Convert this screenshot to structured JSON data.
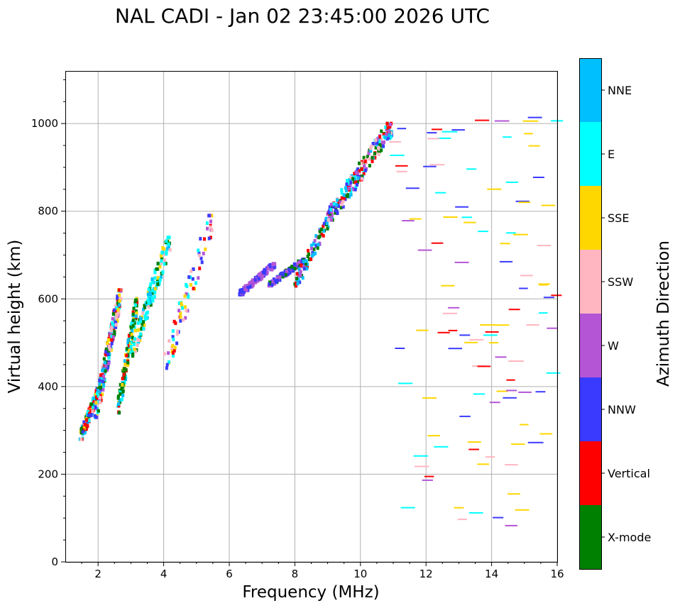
{
  "chart_data": {
    "type": "scatter",
    "title": "NAL CADI - Jan 02 23:45:00 2026 UTC",
    "xlabel": "Frequency (MHz)",
    "ylabel": "Virtual height (km)",
    "xlim": [
      1,
      16
    ],
    "ylim": [
      0,
      1120
    ],
    "x_ticks": [
      2,
      4,
      6,
      8,
      10,
      12,
      14,
      16
    ],
    "y_ticks": [
      0,
      200,
      400,
      600,
      800,
      1000
    ],
    "grid": true,
    "colorbar": {
      "label": "Azimuth Direction",
      "categories": [
        {
          "name": "X-mode",
          "color": "#008000"
        },
        {
          "name": "Vertical",
          "color": "#ff0000"
        },
        {
          "name": "NNW",
          "color": "#3a3aff"
        },
        {
          "name": "W",
          "color": "#b455d6"
        },
        {
          "name": "SSW",
          "color": "#ffb6c1"
        },
        {
          "name": "SSE",
          "color": "#ffd700"
        },
        {
          "name": "E",
          "color": "#00ffff"
        },
        {
          "name": "NNE",
          "color": "#00bfff"
        }
      ]
    },
    "clusters": [
      {
        "f": [
          1.45,
          2.2
        ],
        "h": [
          280,
          430
        ],
        "n": 170,
        "mix": [
          "Vertical",
          "Vertical",
          "E",
          "SSE",
          "NNE",
          "SSW",
          "NNW",
          "X-mode"
        ]
      },
      {
        "f": [
          1.9,
          2.7
        ],
        "h": [
          330,
          620
        ],
        "n": 220,
        "mix": [
          "SSW",
          "SSE",
          "E",
          "Vertical",
          "X-mode",
          "NNE",
          "W",
          "NNW"
        ]
      },
      {
        "f": [
          2.6,
          3.2
        ],
        "h": [
          340,
          600
        ],
        "n": 130,
        "mix": [
          "X-mode",
          "X-mode",
          "E",
          "SSE",
          "Vertical",
          "NNE"
        ]
      },
      {
        "f": [
          3.0,
          4.2
        ],
        "h": [
          470,
          740
        ],
        "n": 150,
        "mix": [
          "E",
          "E",
          "SSE",
          "NNE",
          "SSW",
          "X-mode"
        ]
      },
      {
        "f": [
          4.0,
          5.5
        ],
        "h": [
          440,
          790
        ],
        "n": 80,
        "mix": [
          "SSE",
          "W",
          "E",
          "NNW",
          "Vertical",
          "SSW"
        ]
      },
      {
        "f": [
          6.3,
          7.4
        ],
        "h": [
          610,
          680
        ],
        "n": 140,
        "mix": [
          "NNW",
          "NNW",
          "W",
          "W"
        ]
      },
      {
        "f": [
          7.2,
          8.3
        ],
        "h": [
          630,
          690
        ],
        "n": 100,
        "mix": [
          "NNW",
          "NNW",
          "W",
          "X-mode"
        ]
      },
      {
        "f": [
          8.0,
          9.2
        ],
        "h": [
          630,
          810
        ],
        "n": 90,
        "mix": [
          "X-mode",
          "NNE",
          "NNW",
          "W",
          "Vertical"
        ]
      },
      {
        "f": [
          9.0,
          11.0
        ],
        "h": [
          780,
          1000
        ],
        "n": 210,
        "mix": [
          "NNE",
          "Vertical",
          "X-mode",
          "W",
          "NNW",
          "SSW",
          "E"
        ]
      },
      {
        "f": [
          11.0,
          16.0
        ],
        "h": [
          80,
          1020
        ],
        "n": 110,
        "mix": [
          "Vertical",
          "SSE",
          "W",
          "NNW",
          "SSW",
          "E"
        ],
        "thin": true
      }
    ]
  }
}
